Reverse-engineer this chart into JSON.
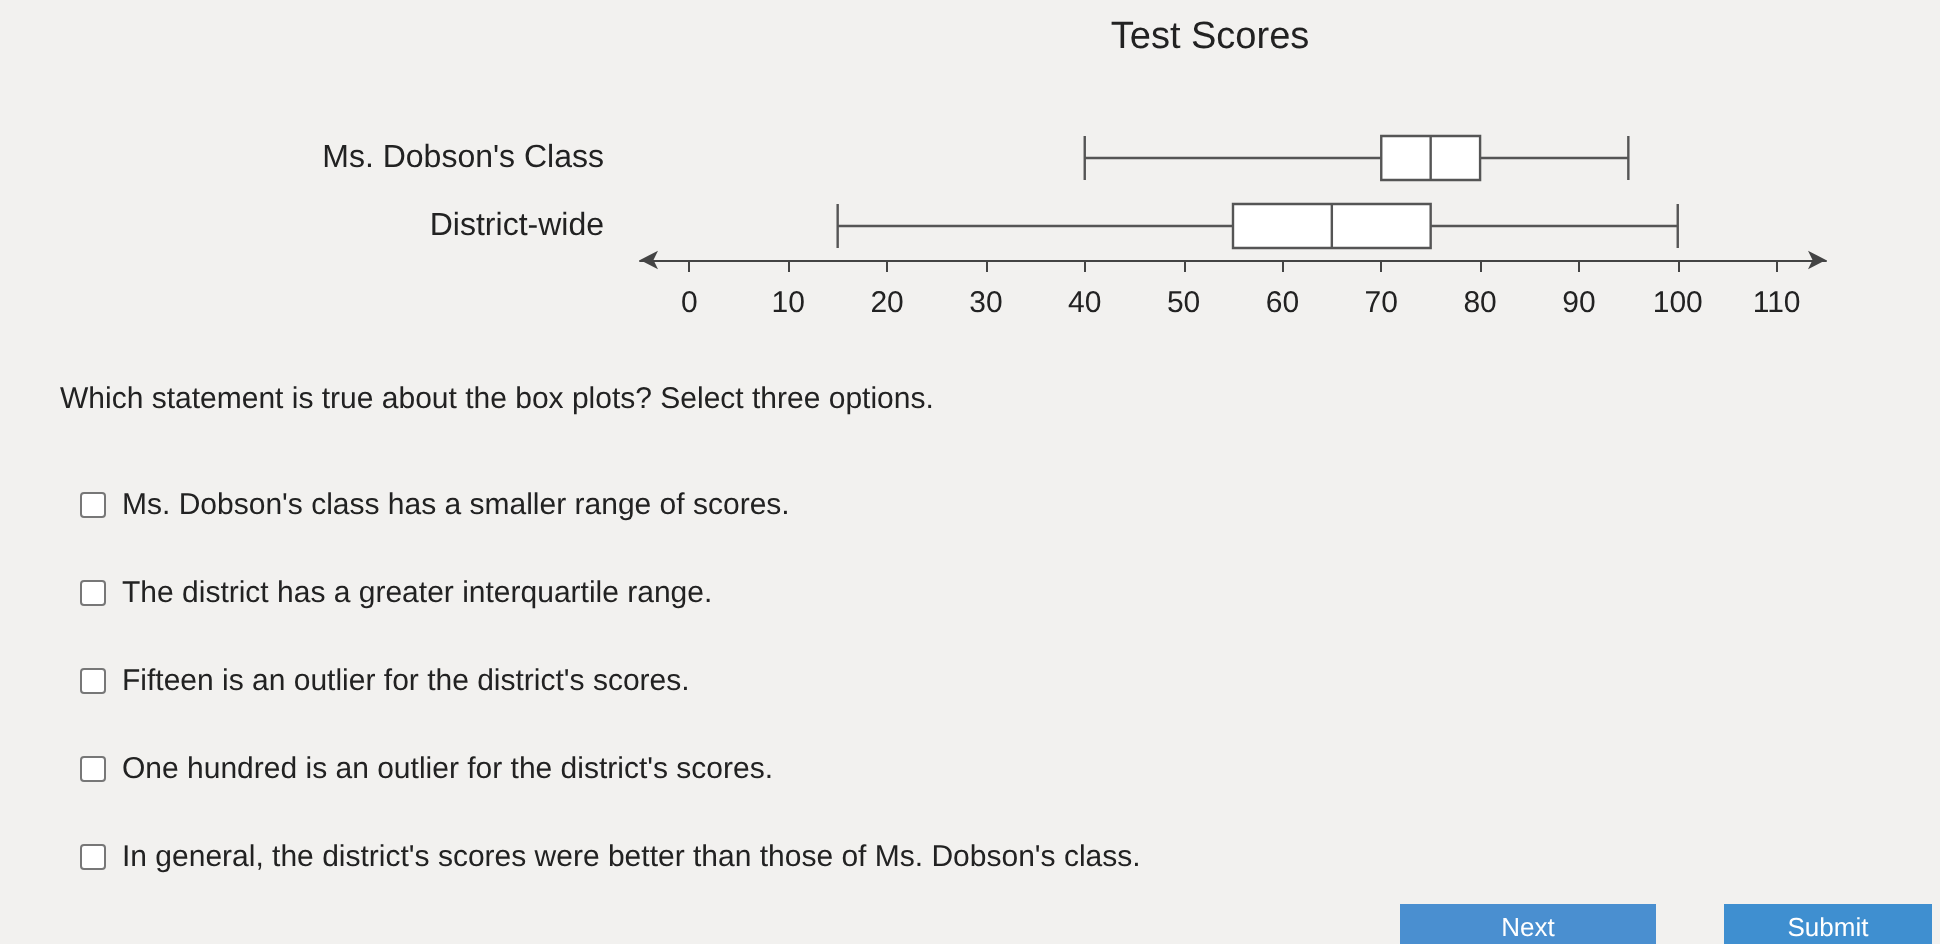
{
  "chart_data": {
    "type": "box",
    "title": "Test Scores",
    "orientation": "horizontal",
    "categories": [
      "Ms. Dobson's Class",
      "District-wide"
    ],
    "series": [
      {
        "color": "#555555",
        "boxes": [
          {
            "low": 40,
            "q1": 70,
            "median": 75,
            "q3": 80,
            "high": 95
          },
          {
            "low": 15,
            "q1": 55,
            "median": 65,
            "q3": 75,
            "high": 100
          }
        ]
      }
    ],
    "xlim": [
      -5,
      115
    ],
    "xticks": [
      0,
      10,
      20,
      30,
      40,
      50,
      60,
      70,
      80,
      90,
      100,
      110
    ],
    "annotations": [
      "Which statement is true about the box plots? Select three options.",
      "Ms. Dobson's class has a smaller range of scores.",
      "The district has a greater interquartile range.",
      "Fifteen is an outlier for the district's scores.",
      "One hundred is an outlier for the district's scores.",
      "In general, the district's scores were better than those of Ms. Dobson's class.",
      "Next",
      "Submit"
    ]
  }
}
